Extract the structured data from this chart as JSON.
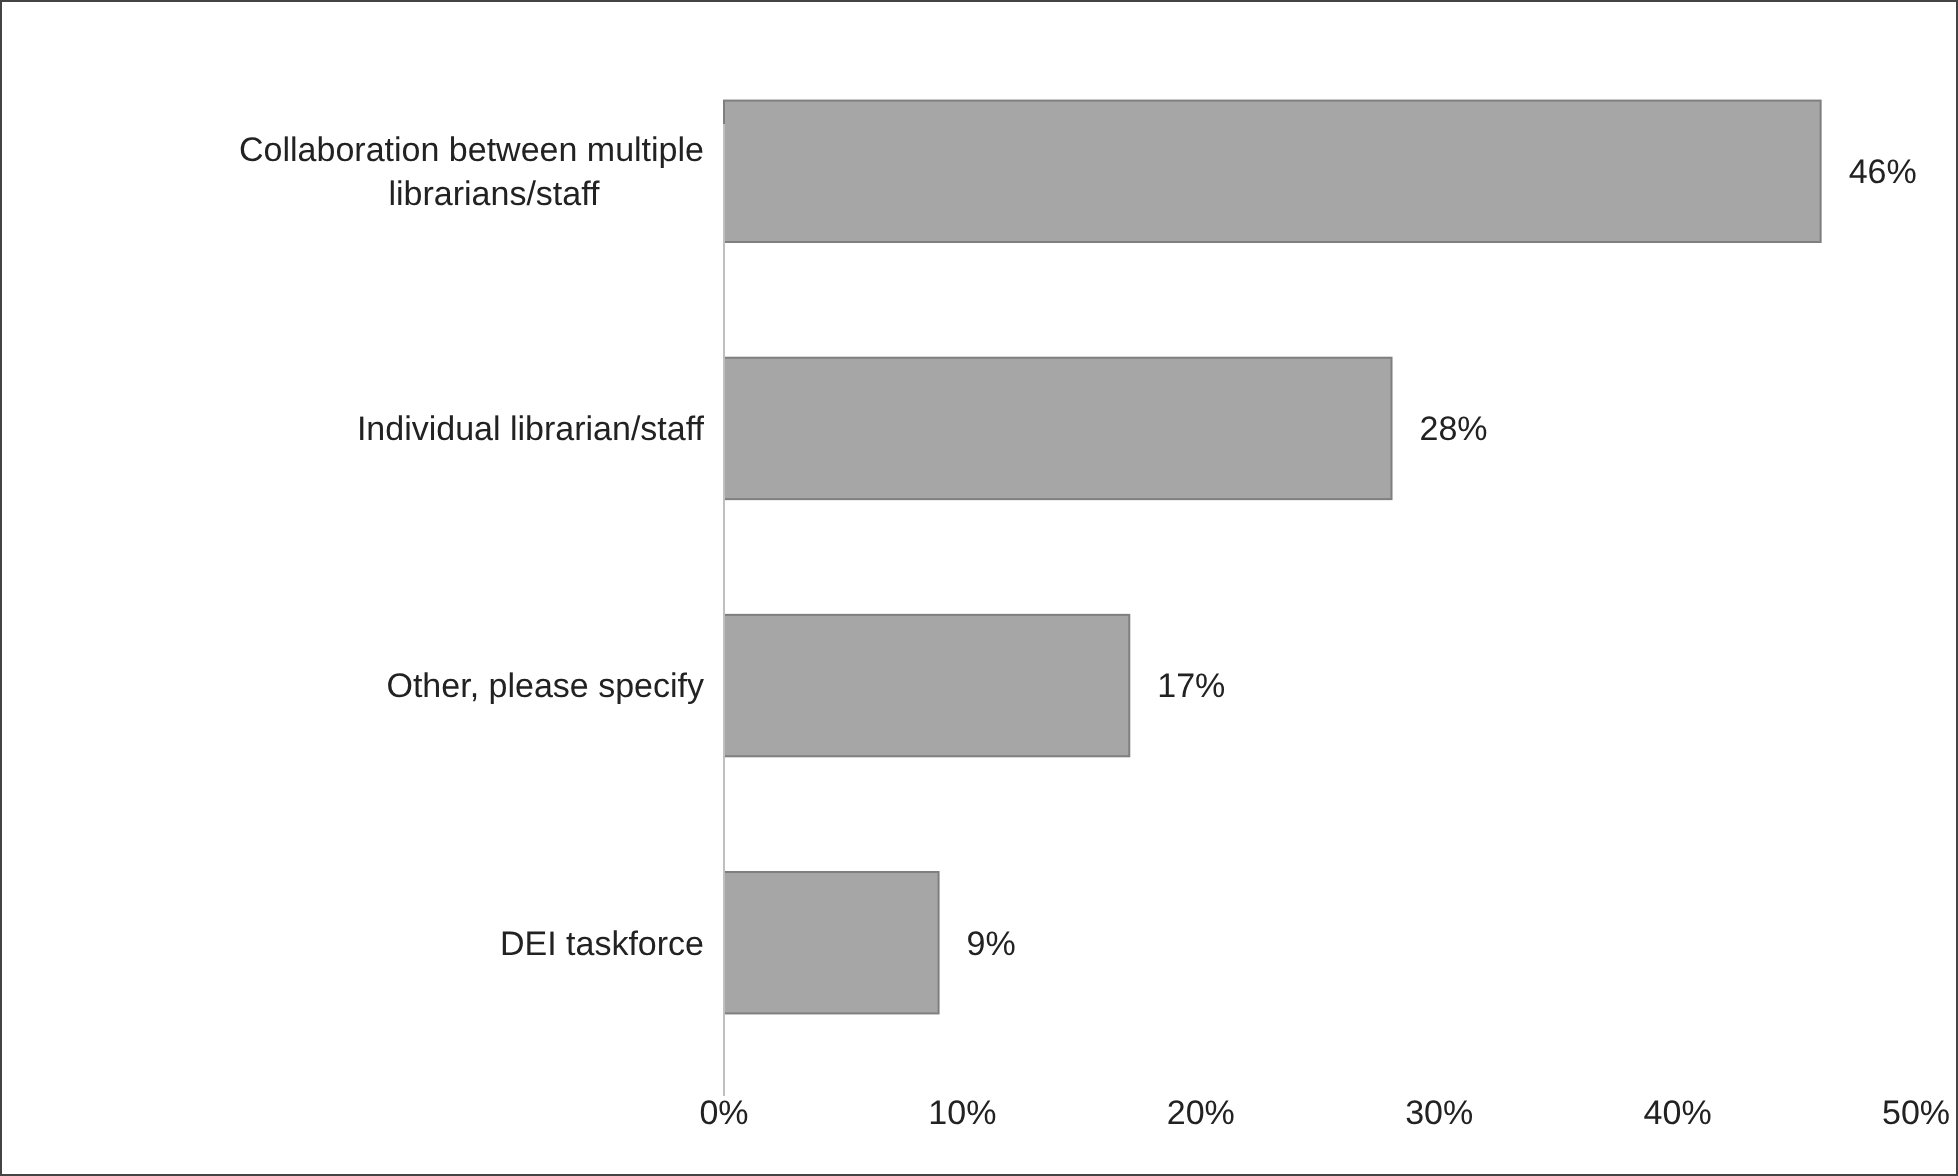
{
  "chart_data": {
    "type": "bar",
    "orientation": "horizontal",
    "categories": [
      "Collaboration between multiple librarians/staff",
      "Individual librarian/staff",
      "Other, please specify",
      "DEI taskforce"
    ],
    "values": [
      46,
      28,
      17,
      9
    ],
    "color": "#a6a6a6",
    "value_labels": [
      "46%",
      "28%",
      "17%",
      "9%"
    ],
    "xlim": [
      0,
      50
    ],
    "xticks": [
      {
        "value": 0,
        "label": "0%"
      },
      {
        "value": 10,
        "label": "10%"
      },
      {
        "value": 20,
        "label": "20%"
      },
      {
        "value": 30,
        "label": "30%"
      },
      {
        "value": 40,
        "label": "40%"
      },
      {
        "value": 50,
        "label": "50%"
      }
    ]
  }
}
